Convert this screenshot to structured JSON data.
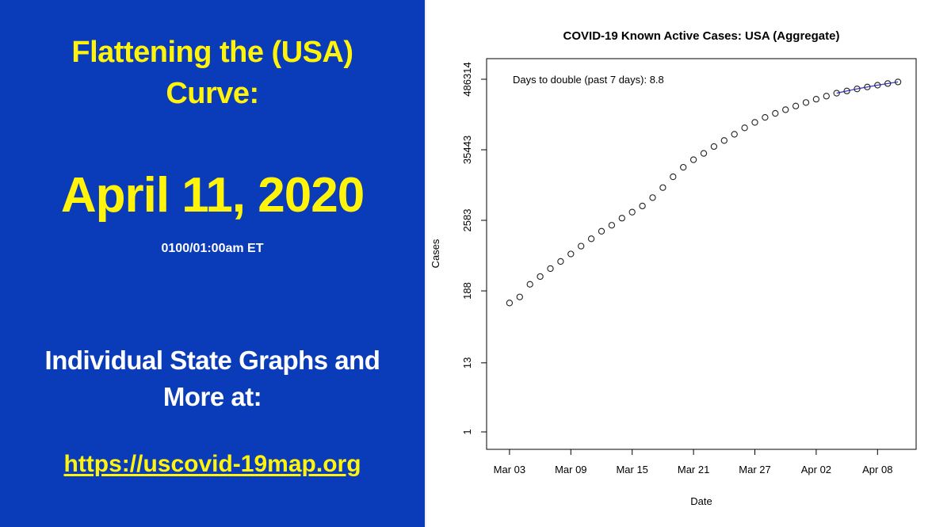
{
  "left": {
    "headline_1": "Flattening the (USA)",
    "headline_2": "Curve:",
    "date": "April 11, 2020",
    "time": "0100/01:00am ET",
    "more_1": "Individual State Graphs and",
    "more_2": "More at:",
    "link": "https://uscovid-19map.org",
    "bg_color": "#0a3bb8",
    "text_color": "#fff40a"
  },
  "chart_data": {
    "type": "scatter",
    "title": "COVID-19 Known Active Cases: USA (Aggregate)",
    "xlabel": "Date",
    "ylabel": "Cases",
    "y_scale": "log",
    "y_ticks": [
      "1",
      "13",
      "188",
      "2583",
      "35443",
      "486314"
    ],
    "y_tick_values": [
      1,
      13,
      188,
      2583,
      35443,
      486314
    ],
    "x_tick_labels": [
      "Mar 03",
      "Mar 09",
      "Mar 15",
      "Mar 21",
      "Mar 27",
      "Apr 02",
      "Apr 08"
    ],
    "x_range": [
      "2020-03-02",
      "2020-04-11"
    ],
    "annotation": "Days to double (past 7 days): 8.8",
    "fit_line_color": "#3a3ad0",
    "fit_start": "2020-04-04",
    "grid": false,
    "series": [
      {
        "x": [
          "2020-03-03",
          "2020-03-04",
          "2020-03-05",
          "2020-03-06",
          "2020-03-07",
          "2020-03-08",
          "2020-03-09",
          "2020-03-10",
          "2020-03-11",
          "2020-03-12",
          "2020-03-13",
          "2020-03-14",
          "2020-03-15",
          "2020-03-16",
          "2020-03-17",
          "2020-03-18",
          "2020-03-19",
          "2020-03-20",
          "2020-03-21",
          "2020-03-22",
          "2020-03-23",
          "2020-03-24",
          "2020-03-25",
          "2020-03-26",
          "2020-03-27",
          "2020-03-28",
          "2020-03-29",
          "2020-03-30",
          "2020-03-31",
          "2020-04-01",
          "2020-04-02",
          "2020-04-03",
          "2020-04-04",
          "2020-04-05",
          "2020-04-06",
          "2020-04-07",
          "2020-04-08",
          "2020-04-09",
          "2020-04-10"
        ],
        "values": [
          120,
          150,
          240,
          320,
          430,
          560,
          740,
          990,
          1300,
          1720,
          2150,
          2800,
          3500,
          4400,
          6000,
          8700,
          13000,
          18500,
          24500,
          31000,
          40000,
          50000,
          63000,
          80000,
          98000,
          118000,
          137000,
          157000,
          180000,
          205000,
          232000,
          260000,
          290000,
          315000,
          340000,
          365000,
          390000,
          415000,
          440000
        ]
      }
    ]
  }
}
